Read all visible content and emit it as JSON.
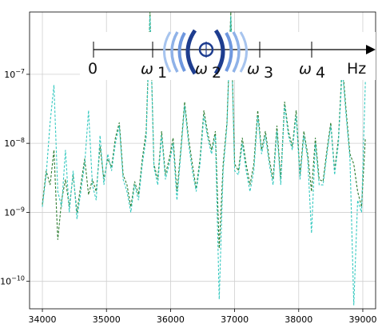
{
  "chart_data": {
    "type": "line",
    "title": "",
    "xlabel": "",
    "ylabel": "",
    "xlim": [
      33800,
      39200
    ],
    "ylog": true,
    "ylim": [
      4e-11,
      8e-07
    ],
    "grid": true,
    "x_ticks": [
      {
        "value": 34000,
        "label": "34000"
      },
      {
        "value": 35000,
        "label": "35000"
      },
      {
        "value": 36000,
        "label": "36000"
      },
      {
        "value": 37000,
        "label": "37000"
      },
      {
        "value": 38000,
        "label": "38000"
      },
      {
        "value": 39000,
        "label": "39000"
      }
    ],
    "y_ticks": [
      {
        "value": 1e-07,
        "base": "10",
        "exp": "−7"
      },
      {
        "value": 1e-08,
        "base": "10",
        "exp": "−8"
      },
      {
        "value": 1e-09,
        "base": "10",
        "exp": "−9"
      },
      {
        "value": 1e-10,
        "base": "10",
        "exp": "−10"
      }
    ],
    "series": [
      {
        "color": "#2e7d32",
        "style": "dashed",
        "x": [
          34000,
          34060,
          34120,
          34180,
          34240,
          34300,
          34360,
          34420,
          34480,
          34540,
          34600,
          34660,
          34720,
          34780,
          34840,
          34900,
          34960,
          35020,
          35080,
          35140,
          35200,
          35260,
          35320,
          35380,
          35440,
          35500,
          35560,
          35620,
          35680,
          35740,
          35800,
          35860,
          35920,
          35980,
          36040,
          36100,
          36160,
          36220,
          36280,
          36340,
          36400,
          36460,
          36520,
          36580,
          36640,
          36700,
          36760,
          36820,
          36880,
          36940,
          37000,
          37060,
          37120,
          37180,
          37240,
          37300,
          37360,
          37420,
          37480,
          37540,
          37600,
          37660,
          37720,
          37780,
          37840,
          37900,
          37960,
          38020,
          38080,
          38140,
          38200,
          38260,
          38320,
          38380,
          38440,
          38500,
          38560,
          38620,
          38680,
          38740,
          38800,
          38860,
          38920,
          38980,
          39040
        ],
        "y": [
          1.3e-09,
          4e-09,
          2.5e-09,
          8e-09,
          4e-10,
          1.5e-09,
          3e-09,
          1.2e-09,
          3.5e-09,
          1e-09,
          2.5e-09,
          6e-09,
          1.8e-09,
          3e-09,
          2e-09,
          9e-09,
          3e-09,
          6e-09,
          4.5e-09,
          1.2e-08,
          2e-08,
          3.5e-09,
          2.5e-09,
          1.2e-09,
          2.8e-09,
          1.8e-09,
          6e-09,
          1.5e-08,
          8e-07,
          5e-09,
          3e-09,
          1.5e-08,
          3.5e-09,
          6e-09,
          1.2e-08,
          2e-09,
          8e-09,
          4e-08,
          1.2e-08,
          5e-09,
          2.2e-09,
          6e-09,
          3e-08,
          1.4e-08,
          8e-09,
          1.5e-08,
          3e-10,
          5e-09,
          2e-08,
          8e-07,
          5e-09,
          4e-09,
          1.2e-08,
          5e-09,
          2.5e-09,
          5e-09,
          3e-08,
          8e-09,
          1.5e-08,
          6e-09,
          3e-09,
          1.8e-08,
          3e-09,
          4e-08,
          1.5e-08,
          9e-09,
          3e-08,
          3.5e-09,
          1.5e-08,
          7e-09,
          2e-09,
          1.2e-08,
          3e-09,
          2.8e-09,
          8e-09,
          2e-08,
          4e-09,
          1.2e-08,
          1.5e-07,
          3e-08,
          7e-09,
          5e-09,
          2e-09,
          1.2e-09,
          1.2e-08
        ]
      },
      {
        "color": "#35c9c0",
        "style": "dashed",
        "x": [
          34000,
          34060,
          34120,
          34180,
          34240,
          34300,
          34360,
          34420,
          34480,
          34540,
          34600,
          34660,
          34720,
          34780,
          34840,
          34900,
          34960,
          35020,
          35080,
          35140,
          35200,
          35260,
          35320,
          35380,
          35440,
          35500,
          35560,
          35620,
          35680,
          35740,
          35800,
          35860,
          35920,
          35980,
          36040,
          36100,
          36160,
          36220,
          36280,
          36340,
          36400,
          36460,
          36520,
          36580,
          36640,
          36700,
          36760,
          36820,
          36880,
          36940,
          37000,
          37060,
          37120,
          37180,
          37240,
          37300,
          37360,
          37420,
          37480,
          37540,
          37600,
          37660,
          37720,
          37780,
          37840,
          37900,
          37960,
          38020,
          38080,
          38140,
          38200,
          38260,
          38320,
          38380,
          38440,
          38500,
          38560,
          38620,
          38680,
          38740,
          38800,
          38860,
          38920,
          38980,
          39040
        ],
        "y": [
          1.2e-09,
          3.5e-09,
          2e-08,
          7e-08,
          2e-09,
          1.2e-09,
          8e-09,
          1e-09,
          4e-09,
          8e-10,
          2e-09,
          5e-09,
          3e-08,
          2.5e-09,
          1.5e-09,
          1.3e-08,
          2.5e-09,
          7e-09,
          4e-09,
          1e-08,
          1.8e-08,
          3e-09,
          2e-09,
          1e-09,
          2.5e-09,
          1.5e-09,
          5e-09,
          1.2e-08,
          7e-07,
          4.5e-09,
          2.5e-09,
          1.3e-08,
          3e-09,
          5e-09,
          1e-08,
          1.5e-09,
          7e-09,
          3.5e-08,
          1e-08,
          4e-09,
          2e-09,
          5e-09,
          2.5e-08,
          1.2e-08,
          7e-09,
          1.3e-08,
          5.5e-11,
          4e-09,
          1.8e-08,
          7e-07,
          4e-09,
          3.5e-09,
          1e-08,
          4e-09,
          2e-09,
          4e-09,
          2.5e-08,
          7e-09,
          1.3e-08,
          5e-09,
          2.5e-09,
          1.5e-08,
          2.5e-09,
          3.5e-08,
          1.3e-08,
          8e-09,
          2.5e-08,
          3e-09,
          1.3e-08,
          6e-09,
          5e-10,
          1e-08,
          2.5e-09,
          2.5e-09,
          7e-09,
          1.8e-08,
          3.5e-09,
          1e-08,
          1.2e-07,
          2.5e-08,
          6e-09,
          4.5e-11,
          1.5e-09,
          1e-09,
          8e-08
        ]
      }
    ]
  },
  "annotation": {
    "axis_labels": {
      "zero": "0",
      "w1": "ω",
      "w1_sub": "1",
      "w2": "ω",
      "w2_sub": "2",
      "w3": "ω",
      "w3_sub": "3",
      "w4": "ω",
      "w4_sub": "4",
      "unit": "Hz"
    },
    "arrow_color": "#000000",
    "wave_colors": {
      "light": "#a7c4ee",
      "mid": "#6f98df",
      "dark": "#1e3d8f"
    }
  }
}
